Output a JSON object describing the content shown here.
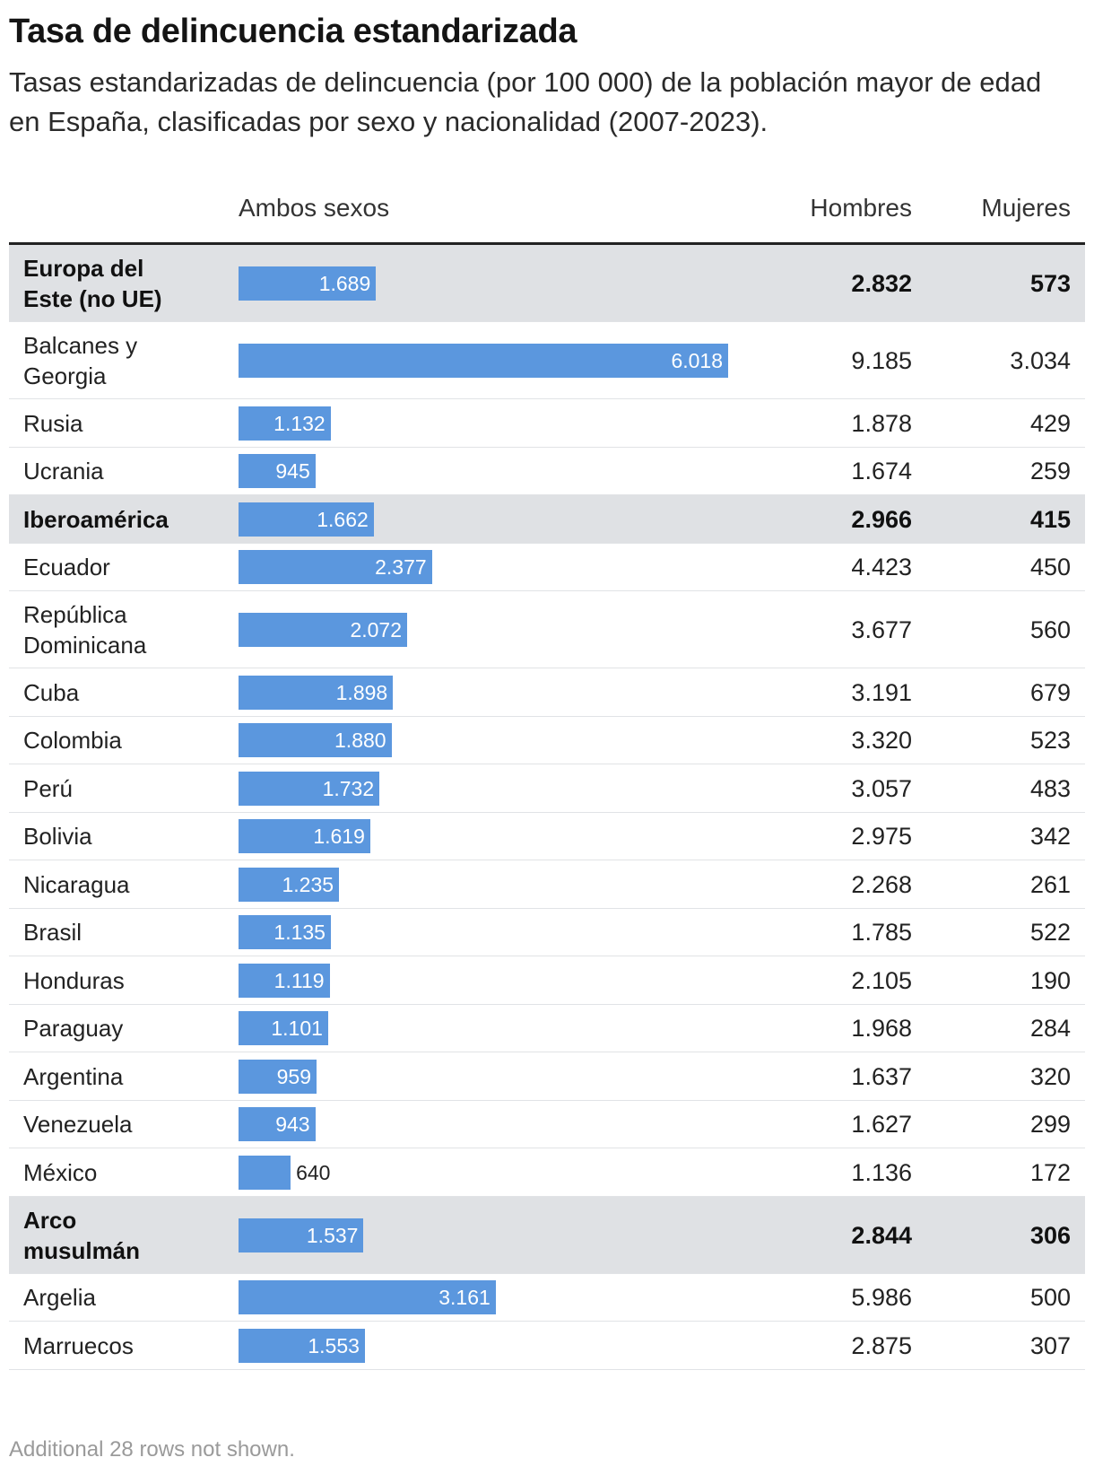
{
  "title": "Tasa de delincuencia estandarizada",
  "subtitle": "Tasas estandarizadas de delincuencia (por 100 000) de la población mayor de edad en España, clasificadas por sexo y nacionalidad (2007-2023).",
  "columns": {
    "name": "",
    "ambos": "Ambos sexos",
    "hombres": "Hombres",
    "mujeres": "Mujeres"
  },
  "footnote": "Additional 28 rows not shown.",
  "colors": {
    "bar": "#5b97de",
    "group_bg": "#dfe1e4"
  },
  "chart_data": {
    "type": "table",
    "bar_max": 6018,
    "rows": [
      {
        "name": "Europa del Este (no UE)",
        "group": true,
        "ambos": 1689,
        "ambos_label": "1.689",
        "hombres": "2.832",
        "mujeres": "573"
      },
      {
        "name": "Balcanes y Georgia",
        "group": false,
        "ambos": 6018,
        "ambos_label": "6.018",
        "hombres": "9.185",
        "mujeres": "3.034"
      },
      {
        "name": "Rusia",
        "group": false,
        "ambos": 1132,
        "ambos_label": "1.132",
        "hombres": "1.878",
        "mujeres": "429"
      },
      {
        "name": "Ucrania",
        "group": false,
        "ambos": 945,
        "ambos_label": "945",
        "hombres": "1.674",
        "mujeres": "259"
      },
      {
        "name": "Iberoamérica",
        "group": true,
        "ambos": 1662,
        "ambos_label": "1.662",
        "hombres": "2.966",
        "mujeres": "415"
      },
      {
        "name": "Ecuador",
        "group": false,
        "ambos": 2377,
        "ambos_label": "2.377",
        "hombres": "4.423",
        "mujeres": "450"
      },
      {
        "name": "República Dominicana",
        "group": false,
        "ambos": 2072,
        "ambos_label": "2.072",
        "hombres": "3.677",
        "mujeres": "560"
      },
      {
        "name": "Cuba",
        "group": false,
        "ambos": 1898,
        "ambos_label": "1.898",
        "hombres": "3.191",
        "mujeres": "679"
      },
      {
        "name": "Colombia",
        "group": false,
        "ambos": 1880,
        "ambos_label": "1.880",
        "hombres": "3.320",
        "mujeres": "523"
      },
      {
        "name": "Perú",
        "group": false,
        "ambos": 1732,
        "ambos_label": "1.732",
        "hombres": "3.057",
        "mujeres": "483"
      },
      {
        "name": "Bolivia",
        "group": false,
        "ambos": 1619,
        "ambos_label": "1.619",
        "hombres": "2.975",
        "mujeres": "342"
      },
      {
        "name": "Nicaragua",
        "group": false,
        "ambos": 1235,
        "ambos_label": "1.235",
        "hombres": "2.268",
        "mujeres": "261"
      },
      {
        "name": "Brasil",
        "group": false,
        "ambos": 1135,
        "ambos_label": "1.135",
        "hombres": "1.785",
        "mujeres": "522"
      },
      {
        "name": "Honduras",
        "group": false,
        "ambos": 1119,
        "ambos_label": "1.119",
        "hombres": "2.105",
        "mujeres": "190"
      },
      {
        "name": "Paraguay",
        "group": false,
        "ambos": 1101,
        "ambos_label": "1.101",
        "hombres": "1.968",
        "mujeres": "284"
      },
      {
        "name": "Argentina",
        "group": false,
        "ambos": 959,
        "ambos_label": "959",
        "hombres": "1.637",
        "mujeres": "320"
      },
      {
        "name": "Venezuela",
        "group": false,
        "ambos": 943,
        "ambos_label": "943",
        "hombres": "1.627",
        "mujeres": "299"
      },
      {
        "name": "México",
        "group": false,
        "ambos": 640,
        "ambos_label": "640",
        "hombres": "1.136",
        "mujeres": "172"
      },
      {
        "name": "Arco musulmán",
        "group": true,
        "ambos": 1537,
        "ambos_label": "1.537",
        "hombres": "2.844",
        "mujeres": "306"
      },
      {
        "name": "Argelia",
        "group": false,
        "ambos": 3161,
        "ambos_label": "3.161",
        "hombres": "5.986",
        "mujeres": "500"
      },
      {
        "name": "Marruecos",
        "group": false,
        "ambos": 1553,
        "ambos_label": "1.553",
        "hombres": "2.875",
        "mujeres": "307"
      }
    ]
  }
}
